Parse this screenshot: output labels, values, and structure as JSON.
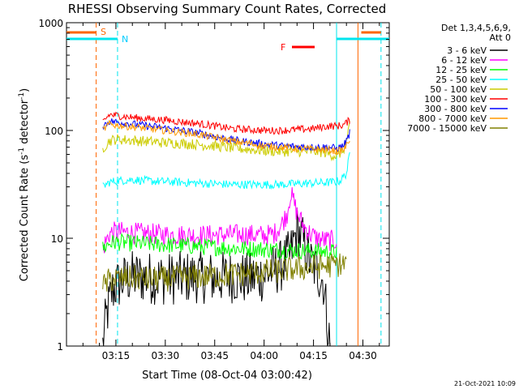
{
  "chart_data": {
    "type": "line",
    "title": "RHESSI Observing Summary Count Rates, Corrected",
    "xlabel": "Start Time (08-Oct-04 03:00:42)",
    "ylabel": "Corrected Count Rate (s-1 detector-1)",
    "ylabel_main": "Corrected Count Rate (s",
    "ylabel_exp1": "-1",
    "ylabel_mid": " detector",
    "ylabel_exp2": "-1",
    "ylabel_end": ")",
    "footer": "21-Oct-2021 10:09",
    "y_scale": "log",
    "ylim": [
      1,
      1000
    ],
    "xlim": [
      "03:00",
      "04:38"
    ],
    "y_ticks": [
      {
        "value": 1,
        "label": "1"
      },
      {
        "value": 10,
        "label": "10"
      },
      {
        "value": 100,
        "label": "100"
      },
      {
        "value": 1000,
        "label": "1000"
      }
    ],
    "x_ticks": [
      {
        "minutes": 15,
        "label": "03:15"
      },
      {
        "minutes": 30,
        "label": "03:30"
      },
      {
        "minutes": 45,
        "label": "03:45"
      },
      {
        "minutes": 60,
        "label": "04:00"
      },
      {
        "minutes": 75,
        "label": "04:15"
      },
      {
        "minutes": 90,
        "label": "04:30"
      }
    ],
    "legend_title": "Det 1,3,4,5,6,9,",
    "legend_subtitle": "Att 0",
    "legend_position": "right",
    "series": [
      {
        "name": "3 - 6 keV",
        "color": "#000000",
        "points": [
          [
            11,
            1
          ],
          [
            12,
            1.8
          ],
          [
            13,
            2.5
          ],
          [
            14,
            3.3
          ],
          [
            15,
            3.6
          ],
          [
            17,
            4
          ],
          [
            20,
            4.4
          ],
          [
            25,
            4.3
          ],
          [
            30,
            4.2
          ],
          [
            35,
            4.3
          ],
          [
            40,
            4.4
          ],
          [
            45,
            4.3
          ],
          [
            50,
            4.4
          ],
          [
            55,
            4.2
          ],
          [
            60,
            4.5
          ],
          [
            65,
            5.5
          ],
          [
            68,
            7
          ],
          [
            70,
            12
          ],
          [
            72,
            9
          ],
          [
            74,
            6
          ],
          [
            76,
            5
          ],
          [
            78,
            4
          ],
          [
            79,
            2
          ],
          [
            80,
            1
          ]
        ]
      },
      {
        "name": "6 - 12 keV",
        "color": "#ff00ff",
        "points": [
          [
            11,
            8
          ],
          [
            13,
            11
          ],
          [
            15,
            11.5
          ],
          [
            20,
            11.2
          ],
          [
            25,
            11
          ],
          [
            30,
            10.8
          ],
          [
            35,
            10.7
          ],
          [
            40,
            10.6
          ],
          [
            45,
            10.7
          ],
          [
            50,
            10.8
          ],
          [
            55,
            10.8
          ],
          [
            60,
            10.6
          ],
          [
            63,
            11
          ],
          [
            65,
            13
          ],
          [
            67,
            17
          ],
          [
            68,
            26
          ],
          [
            69,
            22
          ],
          [
            70,
            17
          ],
          [
            72,
            13
          ],
          [
            74,
            11
          ],
          [
            76,
            10
          ],
          [
            79,
            9.5
          ],
          [
            82,
            9.5
          ]
        ]
      },
      {
        "name": "12 - 25 keV",
        "color": "#00ff00",
        "points": [
          [
            11,
            8
          ],
          [
            13,
            9
          ],
          [
            15,
            9.2
          ],
          [
            20,
            9
          ],
          [
            30,
            8.7
          ],
          [
            40,
            8.4
          ],
          [
            50,
            8.1
          ],
          [
            60,
            7.9
          ],
          [
            65,
            7.8
          ],
          [
            70,
            7.7
          ],
          [
            75,
            7.6
          ],
          [
            80,
            7.5
          ],
          [
            82,
            7.5
          ]
        ]
      },
      {
        "name": "25 - 50 keV",
        "color": "#00ffff",
        "points": [
          [
            11,
            30
          ],
          [
            13,
            33
          ],
          [
            15,
            34
          ],
          [
            20,
            35
          ],
          [
            25,
            34
          ],
          [
            30,
            33.5
          ],
          [
            35,
            33
          ],
          [
            40,
            32.5
          ],
          [
            45,
            32
          ],
          [
            50,
            31.5
          ],
          [
            55,
            31.5
          ],
          [
            60,
            31.5
          ],
          [
            65,
            31.5
          ],
          [
            70,
            32
          ],
          [
            75,
            32.5
          ],
          [
            80,
            33
          ],
          [
            83,
            34
          ],
          [
            85,
            40
          ],
          [
            86,
            60
          ]
        ]
      },
      {
        "name": "50 - 100 keV",
        "color": "#cccc00",
        "points": [
          [
            11,
            68
          ],
          [
            13,
            80
          ],
          [
            15,
            83
          ],
          [
            20,
            81
          ],
          [
            25,
            79
          ],
          [
            30,
            77
          ],
          [
            35,
            76
          ],
          [
            40,
            74
          ],
          [
            45,
            72
          ],
          [
            50,
            69
          ],
          [
            55,
            67
          ],
          [
            60,
            65
          ],
          [
            65,
            64
          ],
          [
            70,
            64
          ],
          [
            75,
            64
          ],
          [
            78,
            63
          ],
          [
            80,
            60
          ],
          [
            82,
            58
          ],
          [
            84,
            65
          ],
          [
            85,
            80
          ],
          [
            86,
            110
          ]
        ]
      },
      {
        "name": "100 - 300 keV",
        "color": "#ff0000",
        "points": [
          [
            11,
            120
          ],
          [
            13,
            140
          ],
          [
            15,
            138
          ],
          [
            20,
            132
          ],
          [
            25,
            128
          ],
          [
            30,
            125
          ],
          [
            35,
            120
          ],
          [
            40,
            116
          ],
          [
            45,
            110
          ],
          [
            50,
            104
          ],
          [
            55,
            102
          ],
          [
            60,
            100
          ],
          [
            65,
            100
          ],
          [
            70,
            102
          ],
          [
            75,
            104
          ],
          [
            78,
            108
          ],
          [
            80,
            110
          ],
          [
            82,
            110
          ],
          [
            84,
            112
          ],
          [
            85,
            118
          ],
          [
            86,
            125
          ]
        ]
      },
      {
        "name": "300 - 800 keV",
        "color": "#0000ff",
        "points": [
          [
            11,
            110
          ],
          [
            13,
            122
          ],
          [
            15,
            120
          ],
          [
            20,
            115
          ],
          [
            25,
            110
          ],
          [
            30,
            105
          ],
          [
            35,
            100
          ],
          [
            40,
            95
          ],
          [
            45,
            88
          ],
          [
            50,
            82
          ],
          [
            55,
            78
          ],
          [
            60,
            75
          ],
          [
            65,
            72
          ],
          [
            70,
            71
          ],
          [
            75,
            70
          ],
          [
            80,
            70
          ],
          [
            82,
            68
          ],
          [
            84,
            72
          ],
          [
            85,
            80
          ],
          [
            86,
            95
          ]
        ]
      },
      {
        "name": "800 - 7000 keV",
        "color": "#ff9900",
        "points": [
          [
            11,
            100
          ],
          [
            13,
            115
          ],
          [
            15,
            112
          ],
          [
            20,
            108
          ],
          [
            25,
            104
          ],
          [
            30,
            100
          ],
          [
            35,
            96
          ],
          [
            40,
            92
          ],
          [
            45,
            86
          ],
          [
            50,
            80
          ],
          [
            55,
            76
          ],
          [
            60,
            72
          ],
          [
            65,
            70
          ],
          [
            70,
            68
          ],
          [
            75,
            67
          ],
          [
            80,
            66
          ],
          [
            82,
            64
          ],
          [
            84,
            66
          ],
          [
            85,
            72
          ],
          [
            86,
            85
          ]
        ]
      },
      {
        "name": "7000 - 15000 keV",
        "color": "#808000",
        "points": [
          [
            11,
            3.5
          ],
          [
            13,
            4.1
          ],
          [
            15,
            4.2
          ],
          [
            20,
            4.3
          ],
          [
            25,
            4.2
          ],
          [
            30,
            4.2
          ],
          [
            35,
            4.3
          ],
          [
            40,
            4.4
          ],
          [
            45,
            4.5
          ],
          [
            50,
            4.6
          ],
          [
            55,
            4.7
          ],
          [
            60,
            4.9
          ],
          [
            65,
            5.0
          ],
          [
            70,
            5.2
          ],
          [
            75,
            5.4
          ],
          [
            80,
            5.6
          ],
          [
            82,
            5.7
          ],
          [
            85,
            5.8
          ]
        ]
      }
    ],
    "annotations": [
      {
        "label": "S",
        "color": "#ff6600"
      },
      {
        "label": "N",
        "color": "#00ccff"
      },
      {
        "label": "F",
        "color": "#ff0000"
      }
    ]
  }
}
